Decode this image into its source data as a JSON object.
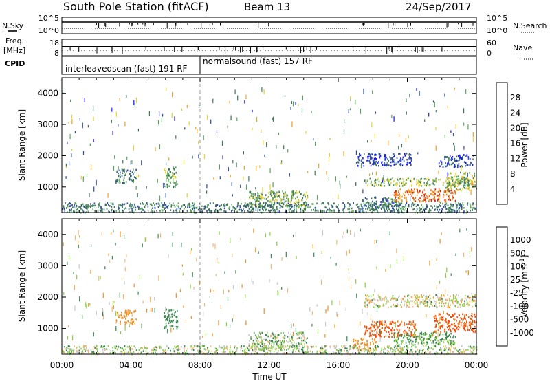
{
  "header": {
    "title": "South Pole Station (fitACF)",
    "beam": "Beam 13",
    "date": "24/Sep/2017"
  },
  "strip_panels": {
    "nsky": {
      "label": "N.Sky",
      "left_ticks": [
        "10^5",
        "10^0"
      ],
      "right_ticks": [
        "10^5",
        "10^0"
      ],
      "right_label": "N.Search"
    },
    "freq": {
      "label_line1": "Freq.",
      "label_line2": "[MHz]",
      "left_ticks": [
        "18",
        "8"
      ],
      "right_ticks": [
        "60",
        "0"
      ],
      "right_label": "Nave"
    },
    "cpid": {
      "label": "CPID",
      "segments": [
        {
          "text": "interleavedscan (fast) 191 RF",
          "start": "00:00",
          "end": "08:00"
        },
        {
          "text": "normalsound (fast) 157 RF",
          "start": "08:00",
          "end": "24:00"
        }
      ]
    }
  },
  "colors": {
    "power_scale": [
      "#1a1aff",
      "#2e4e9e",
      "#3e7a55",
      "#5aa65a",
      "#e8d233",
      "#f0a020",
      "#f07010",
      "#e02010"
    ],
    "velocity_scale": [
      "#e01010",
      "#f05008",
      "#f09020",
      "#f0b878",
      "#c8c8c8",
      "#88d040",
      "#3a8a50",
      "#2850a0",
      "#1a1ae0"
    ]
  },
  "chart_data": [
    {
      "type": "heatmap",
      "panel": "power",
      "xlabel": "",
      "ylabel": "Slant Range [km]",
      "xlim": [
        0,
        24
      ],
      "ylim": [
        180,
        4500
      ],
      "x_ticks": [
        "00:00",
        "04:00",
        "08:00",
        "12:00",
        "16:00",
        "20:00",
        "00:00"
      ],
      "y_ticks": [
        1000,
        2000,
        3000,
        4000
      ],
      "colorbar": {
        "label": "Power [dB]",
        "range": [
          0,
          32
        ],
        "ticks": [
          4,
          8,
          12,
          16,
          20,
          24,
          28
        ]
      },
      "patches": [
        {
          "t": [
            3.1,
            4.3
          ],
          "r": [
            1150,
            1600
          ],
          "p": 9
        },
        {
          "t": [
            5.9,
            6.7
          ],
          "r": [
            1000,
            1650
          ],
          "p": 13
        },
        {
          "t": [
            10.8,
            14.2
          ],
          "r": [
            350,
            900
          ],
          "p": 14
        },
        {
          "t": [
            17.3,
            19.6
          ],
          "r": [
            300,
            700
          ],
          "p": 8
        },
        {
          "t": [
            17.5,
            23.5
          ],
          "r": [
            1050,
            1300
          ],
          "p": 15
        },
        {
          "t": [
            19.2,
            22.8
          ],
          "r": [
            550,
            950
          ],
          "p": 26
        },
        {
          "t": [
            22.2,
            24.0
          ],
          "r": [
            900,
            1500
          ],
          "p": 16
        },
        {
          "t": [
            17.0,
            20.3
          ],
          "r": [
            1700,
            2100
          ],
          "p": 5
        },
        {
          "t": [
            21.8,
            23.8
          ],
          "r": [
            1650,
            2050
          ],
          "p": 6
        },
        {
          "t": [
            0.0,
            24.0
          ],
          "r": [
            200,
            520
          ],
          "p": 10
        }
      ]
    },
    {
      "type": "heatmap",
      "panel": "velocity",
      "xlabel": "Time UT",
      "ylabel": "Slant Range [km]",
      "xlim": [
        0,
        24
      ],
      "ylim": [
        180,
        4500
      ],
      "x_ticks": [
        "00:00",
        "04:00",
        "08:00",
        "12:00",
        "16:00",
        "20:00",
        "00:00"
      ],
      "y_ticks": [
        1000,
        2000,
        3000,
        4000
      ],
      "colorbar": {
        "label": "Velocity [m s^-1]",
        "ticks": [
          "1000",
          "500",
          "100",
          "25",
          "-25",
          "-100",
          "-500",
          "-1000"
        ],
        "boundaries": [
          -1500,
          -1000,
          -500,
          -100,
          -25,
          25,
          100,
          500,
          1000,
          1500
        ]
      },
      "patches": [
        {
          "t": [
            3.1,
            4.3
          ],
          "r": [
            1150,
            1600
          ],
          "v": -200
        },
        {
          "t": [
            5.9,
            6.7
          ],
          "r": [
            1000,
            1650
          ],
          "v": 300
        },
        {
          "t": [
            10.8,
            14.2
          ],
          "r": [
            350,
            900
          ],
          "v": 60
        },
        {
          "t": [
            16.8,
            18.2
          ],
          "r": [
            300,
            700
          ],
          "v": -200
        },
        {
          "t": [
            17.5,
            20.5
          ],
          "r": [
            750,
            1250
          ],
          "v": -600
        },
        {
          "t": [
            19.2,
            22.8
          ],
          "r": [
            500,
            900
          ],
          "v": 150
        },
        {
          "t": [
            21.5,
            24.0
          ],
          "r": [
            900,
            1500
          ],
          "v": -600
        },
        {
          "t": [
            17.5,
            24.0
          ],
          "r": [
            1700,
            2100
          ],
          "v": 0
        },
        {
          "t": [
            0.0,
            24.0
          ],
          "r": [
            200,
            480
          ],
          "v": 40
        }
      ]
    }
  ]
}
